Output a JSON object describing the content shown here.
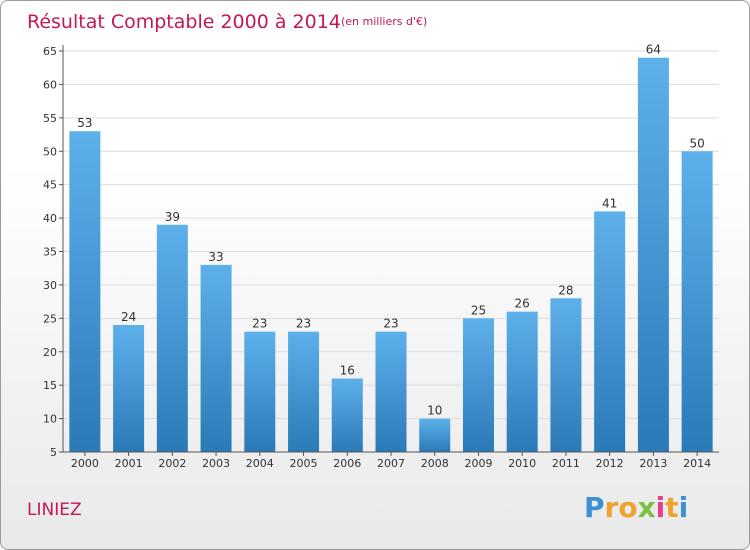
{
  "chart_data": {
    "type": "bar",
    "title": "Résultat Comptable 2000 à 2014",
    "subtitle": "(en milliers d'€)",
    "categories": [
      "2000",
      "2001",
      "2002",
      "2003",
      "2004",
      "2005",
      "2006",
      "2007",
      "2008",
      "2009",
      "2010",
      "2011",
      "2012",
      "2013",
      "2014"
    ],
    "values": [
      53,
      24,
      39,
      33,
      23,
      23,
      16,
      23,
      10,
      25,
      26,
      28,
      41,
      64,
      50
    ],
    "ylim": [
      5,
      65
    ],
    "yticks": [
      5,
      10,
      15,
      20,
      25,
      30,
      35,
      40,
      45,
      50,
      55,
      60,
      65
    ],
    "grid": true,
    "xlabel": "",
    "ylabel": ""
  },
  "footer": {
    "commune": "LINIEZ",
    "logo_letters": [
      "P",
      "r",
      "o",
      "x",
      "i",
      "t",
      "i"
    ]
  },
  "colors": {
    "bar_light": "#5eb0ea",
    "bar_dark": "#2a7ab8",
    "title": "#c2185b",
    "logo": [
      "#3d8fd6",
      "#f0a22e",
      "#f0a22e",
      "#7cc242",
      "#e83f8c",
      "#f0a22e",
      "#3d8fd6"
    ]
  }
}
